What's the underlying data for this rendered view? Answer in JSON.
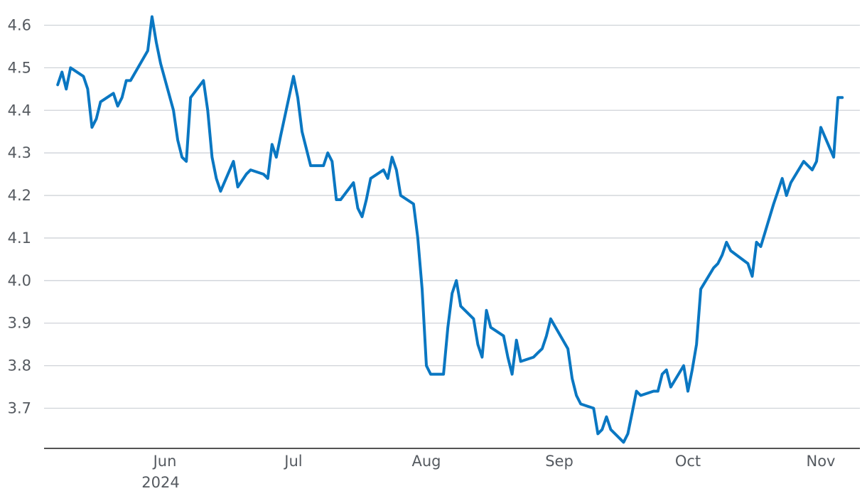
{
  "chart_data": {
    "type": "line",
    "title": "",
    "xlabel": "",
    "ylabel": "",
    "ylim": [
      3.6,
      4.64
    ],
    "yticks": [
      3.7,
      3.8,
      3.9,
      4.0,
      4.1,
      4.2,
      4.3,
      4.4,
      4.5,
      4.6
    ],
    "ytick_labels": [
      "3.7",
      "3.8",
      "3.9",
      "4.0",
      "4.1",
      "4.2",
      "4.3",
      "4.4",
      "4.5",
      "4.6"
    ],
    "xlim": [
      "2024-05-02",
      "2024-11-13"
    ],
    "xticks": [
      {
        "date": "2024-06-01",
        "label": "Jun",
        "sublabel": "2024"
      },
      {
        "date": "2024-07-01",
        "label": "Jul"
      },
      {
        "date": "2024-08-01",
        "label": "Aug"
      },
      {
        "date": "2024-09-01",
        "label": "Sep"
      },
      {
        "date": "2024-10-01",
        "label": "Oct"
      },
      {
        "date": "2024-11-01",
        "label": "Nov"
      }
    ],
    "grid": true,
    "legend": "none",
    "color": "#0a77c2",
    "series": [
      {
        "x": [
          "2024-05-07",
          "2024-05-08",
          "2024-05-09",
          "2024-05-10",
          "2024-05-13",
          "2024-05-14",
          "2024-05-15",
          "2024-05-16",
          "2024-05-17",
          "2024-05-20",
          "2024-05-21",
          "2024-05-22",
          "2024-05-23",
          "2024-05-24",
          "2024-05-28",
          "2024-05-29",
          "2024-05-30",
          "2024-05-31",
          "2024-06-03",
          "2024-06-04",
          "2024-06-05",
          "2024-06-06",
          "2024-06-07",
          "2024-06-10",
          "2024-06-11",
          "2024-06-12",
          "2024-06-13",
          "2024-06-14",
          "2024-06-17",
          "2024-06-18",
          "2024-06-20",
          "2024-06-21",
          "2024-06-24",
          "2024-06-25",
          "2024-06-26",
          "2024-06-27",
          "2024-06-28",
          "2024-07-01",
          "2024-07-02",
          "2024-07-03",
          "2024-07-05",
          "2024-07-08",
          "2024-07-09",
          "2024-07-10",
          "2024-07-11",
          "2024-07-12",
          "2024-07-15",
          "2024-07-16",
          "2024-07-17",
          "2024-07-18",
          "2024-07-19",
          "2024-07-22",
          "2024-07-23",
          "2024-07-24",
          "2024-07-25",
          "2024-07-26",
          "2024-07-29",
          "2024-07-30",
          "2024-07-31",
          "2024-08-01",
          "2024-08-02",
          "2024-08-05",
          "2024-08-06",
          "2024-08-07",
          "2024-08-08",
          "2024-08-09",
          "2024-08-12",
          "2024-08-13",
          "2024-08-14",
          "2024-08-15",
          "2024-08-16",
          "2024-08-19",
          "2024-08-20",
          "2024-08-21",
          "2024-08-22",
          "2024-08-23",
          "2024-08-26",
          "2024-08-27",
          "2024-08-28",
          "2024-08-29",
          "2024-08-30",
          "2024-09-03",
          "2024-09-04",
          "2024-09-05",
          "2024-09-06",
          "2024-09-09",
          "2024-09-10",
          "2024-09-11",
          "2024-09-12",
          "2024-09-13",
          "2024-09-16",
          "2024-09-17",
          "2024-09-18",
          "2024-09-19",
          "2024-09-20",
          "2024-09-23",
          "2024-09-24",
          "2024-09-25",
          "2024-09-26",
          "2024-09-27",
          "2024-09-30",
          "2024-10-01",
          "2024-10-02",
          "2024-10-03",
          "2024-10-04",
          "2024-10-07",
          "2024-10-08",
          "2024-10-09",
          "2024-10-10",
          "2024-10-11",
          "2024-10-15",
          "2024-10-16",
          "2024-10-17",
          "2024-10-18",
          "2024-10-21",
          "2024-10-22",
          "2024-10-23",
          "2024-10-24",
          "2024-10-25",
          "2024-10-28",
          "2024-10-29",
          "2024-10-30",
          "2024-10-31",
          "2024-11-01",
          "2024-11-04",
          "2024-11-05",
          "2024-11-06"
        ],
        "values": [
          4.46,
          4.49,
          4.45,
          4.5,
          4.48,
          4.45,
          4.36,
          4.38,
          4.42,
          4.44,
          4.41,
          4.43,
          4.47,
          4.47,
          4.54,
          4.62,
          4.56,
          4.51,
          4.4,
          4.33,
          4.29,
          4.28,
          4.43,
          4.47,
          4.4,
          4.29,
          4.24,
          4.21,
          4.28,
          4.22,
          4.25,
          4.26,
          4.25,
          4.24,
          4.32,
          4.29,
          4.34,
          4.48,
          4.43,
          4.35,
          4.27,
          4.27,
          4.3,
          4.28,
          4.19,
          4.19,
          4.23,
          4.17,
          4.15,
          4.19,
          4.24,
          4.26,
          4.24,
          4.29,
          4.26,
          4.2,
          4.18,
          4.1,
          3.98,
          3.8,
          3.78,
          3.78,
          3.89,
          3.97,
          4.0,
          3.94,
          3.91,
          3.85,
          3.82,
          3.93,
          3.89,
          3.87,
          3.82,
          3.78,
          3.86,
          3.81,
          3.82,
          3.83,
          3.84,
          3.87,
          3.91,
          3.84,
          3.77,
          3.73,
          3.71,
          3.7,
          3.64,
          3.65,
          3.68,
          3.65,
          3.62,
          3.64,
          3.69,
          3.74,
          3.73,
          3.74,
          3.74,
          3.78,
          3.79,
          3.75,
          3.8,
          3.74,
          3.79,
          3.85,
          3.98,
          4.03,
          4.04,
          4.06,
          4.09,
          4.07,
          4.04,
          4.01,
          4.09,
          4.08,
          4.18,
          4.21,
          4.24,
          4.2,
          4.23,
          4.28,
          4.27,
          4.26,
          4.28,
          4.36,
          4.29,
          4.43,
          4.43
        ]
      }
    ]
  }
}
